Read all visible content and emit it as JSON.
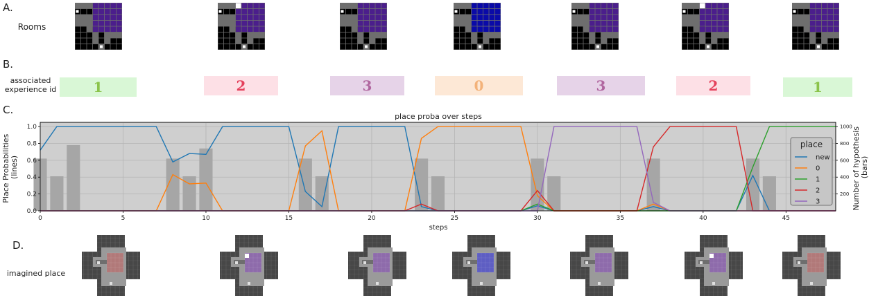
{
  "panels": {
    "a_label": "A.",
    "b_label": "B.",
    "c_label": "C.",
    "d_label": "D.",
    "rooms_label": "Rooms",
    "exp_label_line1": "associated",
    "exp_label_line2": "experience id",
    "imagined_label": "imagined place"
  },
  "experience_ids": [
    {
      "id": "1",
      "bg": "#d9f7d6",
      "fg": "#8bc34a"
    },
    {
      "id": "2",
      "bg": "#fde0e6",
      "fg": "#e5415c"
    },
    {
      "id": "3",
      "bg": "#e6d3e8",
      "fg": "#b0669f"
    },
    {
      "id": "0",
      "bg": "#fde8d6",
      "fg": "#f3b27a"
    },
    {
      "id": "3",
      "bg": "#e6d3e8",
      "fg": "#b0669f"
    },
    {
      "id": "2",
      "bg": "#fde0e6",
      "fg": "#e5415c"
    },
    {
      "id": "1",
      "bg": "#d9f7d6",
      "fg": "#8bc34a"
    }
  ],
  "rooms": [
    {
      "room_color": "#4b1e8c",
      "white_tile": false
    },
    {
      "room_color": "#4b1e8c",
      "white_tile": true
    },
    {
      "room_color": "#4b1e8c",
      "white_tile": false
    },
    {
      "room_color": "#0a0aa8",
      "white_tile": false
    },
    {
      "room_color": "#4b1e8c",
      "white_tile": false
    },
    {
      "room_color": "#4b1e8c",
      "white_tile": true
    },
    {
      "room_color": "#4b1e8c",
      "white_tile": false
    }
  ],
  "imagined": [
    {
      "tint": "#b86e6e",
      "white_tile": false
    },
    {
      "tint": "#8a5bb0",
      "white_tile": true
    },
    {
      "tint": "#8a5bb0",
      "white_tile": false
    },
    {
      "tint": "#4a4ad0",
      "white_tile": false
    },
    {
      "tint": "#8a5bb0",
      "white_tile": false
    },
    {
      "tint": "#8a5bb0",
      "white_tile": true
    },
    {
      "tint": "#b86e6e",
      "white_tile": false
    }
  ],
  "chart_data": {
    "type": "line",
    "title": "place proba over steps",
    "xlabel": "steps",
    "ylabel_line1": "Place Probabilities",
    "ylabel_line2": "(lines)",
    "y2label_line1": "Number of hypothesis",
    "y2label_line2": "(bars)",
    "xlim": [
      0,
      48
    ],
    "ylim": [
      0,
      1.05
    ],
    "y2lim": [
      0,
      1050
    ],
    "xticks": [
      0,
      5,
      10,
      15,
      20,
      25,
      30,
      35,
      40,
      45
    ],
    "yticks": [
      0.0,
      0.2,
      0.4,
      0.6,
      0.8,
      1.0
    ],
    "ytick_labels": [
      "0.0",
      "0.2",
      "0.4",
      "0.6",
      "0.8",
      "1.0"
    ],
    "y2ticks": [
      200,
      400,
      600,
      800,
      1000
    ],
    "grid": true,
    "legend_title": "place",
    "legend_position": "right",
    "series": [
      {
        "name": "new",
        "color": "#1f77b4",
        "points": [
          [
            0,
            0.72
          ],
          [
            1,
            1.0
          ],
          [
            7,
            1.0
          ],
          [
            8,
            0.58
          ],
          [
            9,
            0.68
          ],
          [
            10,
            0.67
          ],
          [
            11,
            1.0
          ],
          [
            15,
            1.0
          ],
          [
            16,
            0.23
          ],
          [
            17,
            0.05
          ],
          [
            18,
            1.0
          ],
          [
            22,
            1.0
          ],
          [
            23,
            0.05
          ],
          [
            24,
            0.0
          ],
          [
            29,
            0.0
          ],
          [
            30,
            0.06
          ],
          [
            31,
            0.0
          ],
          [
            36,
            0.0
          ],
          [
            37,
            0.05
          ],
          [
            38,
            0.0
          ],
          [
            42,
            0.0
          ],
          [
            43,
            0.42
          ],
          [
            44,
            0.0
          ],
          [
            48,
            0.0
          ]
        ]
      },
      {
        "name": "0",
        "color": "#ff7f0e",
        "points": [
          [
            0,
            0.0
          ],
          [
            7,
            0.0
          ],
          [
            8,
            0.43
          ],
          [
            9,
            0.32
          ],
          [
            10,
            0.33
          ],
          [
            11,
            0.0
          ],
          [
            15,
            0.0
          ],
          [
            16,
            0.77
          ],
          [
            17,
            0.95
          ],
          [
            18,
            0.0
          ],
          [
            22,
            0.0
          ],
          [
            23,
            0.86
          ],
          [
            24,
            1.0
          ],
          [
            29,
            1.0
          ],
          [
            30,
            0.18
          ],
          [
            31,
            0.0
          ],
          [
            36,
            0.0
          ],
          [
            37,
            0.08
          ],
          [
            38,
            0.0
          ],
          [
            48,
            0.0
          ]
        ]
      },
      {
        "name": "1",
        "color": "#2ca02c",
        "points": [
          [
            0,
            0.0
          ],
          [
            29,
            0.0
          ],
          [
            30,
            0.08
          ],
          [
            31,
            0.0
          ],
          [
            42,
            0.0
          ],
          [
            43,
            0.52
          ],
          [
            44,
            1.0
          ],
          [
            48,
            1.0
          ]
        ]
      },
      {
        "name": "2",
        "color": "#d62728",
        "points": [
          [
            0,
            0.0
          ],
          [
            22,
            0.0
          ],
          [
            23,
            0.08
          ],
          [
            24,
            0.0
          ],
          [
            29,
            0.0
          ],
          [
            30,
            0.24
          ],
          [
            31,
            0.0
          ],
          [
            36,
            0.0
          ],
          [
            37,
            0.76
          ],
          [
            38,
            1.0
          ],
          [
            42,
            1.0
          ],
          [
            43,
            0.0
          ],
          [
            48,
            0.0
          ]
        ]
      },
      {
        "name": "3",
        "color": "#9467bd",
        "points": [
          [
            0,
            0.0
          ],
          [
            29,
            0.0
          ],
          [
            30,
            0.0
          ],
          [
            31,
            1.0
          ],
          [
            36,
            1.0
          ],
          [
            37,
            0.1
          ],
          [
            38,
            0.0
          ],
          [
            48,
            0.0
          ]
        ]
      }
    ],
    "bars": {
      "color": "#a6a6a6",
      "x": [
        0,
        1,
        2,
        8,
        9,
        10,
        16,
        17,
        23,
        24,
        30,
        31,
        37,
        43,
        44
      ],
      "values": [
        620,
        410,
        780,
        620,
        410,
        740,
        620,
        410,
        620,
        410,
        620,
        410,
        620,
        620,
        410
      ]
    }
  }
}
